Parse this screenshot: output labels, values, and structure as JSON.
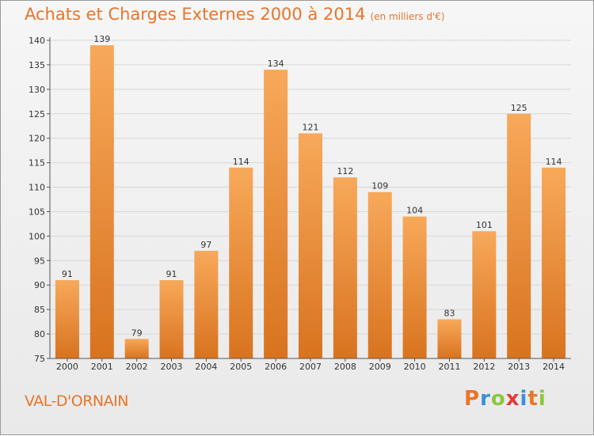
{
  "header": {
    "title": "Achats et Charges Externes 2000 à 2014",
    "unit": "(en milliers d'€)"
  },
  "footer": {
    "commune": "VAL-D'ORNAIN",
    "brand": [
      "P",
      "r",
      "o",
      "x",
      "i",
      "t",
      "i"
    ],
    "brand_colors": [
      "#e8752a",
      "#3a8fd8",
      "#8cc63f",
      "#e23b3b",
      "#3a8fd8",
      "#e8752a",
      "#8cc63f"
    ]
  },
  "colors": {
    "bar_top": "#f7a95a",
    "bar_bottom": "#d8731f",
    "text": "#333333"
  },
  "chart_data": {
    "type": "bar",
    "categories": [
      "2000",
      "2001",
      "2002",
      "2003",
      "2004",
      "2005",
      "2006",
      "2007",
      "2008",
      "2009",
      "2010",
      "2011",
      "2012",
      "2013",
      "2014"
    ],
    "values": [
      91,
      139,
      79,
      91,
      97,
      114,
      134,
      121,
      112,
      109,
      104,
      83,
      101,
      125,
      114
    ],
    "yticks": [
      75,
      80,
      85,
      90,
      95,
      100,
      105,
      110,
      115,
      120,
      125,
      130,
      135,
      140
    ],
    "ylim": [
      75,
      140
    ],
    "grid": true,
    "legend": "none"
  }
}
